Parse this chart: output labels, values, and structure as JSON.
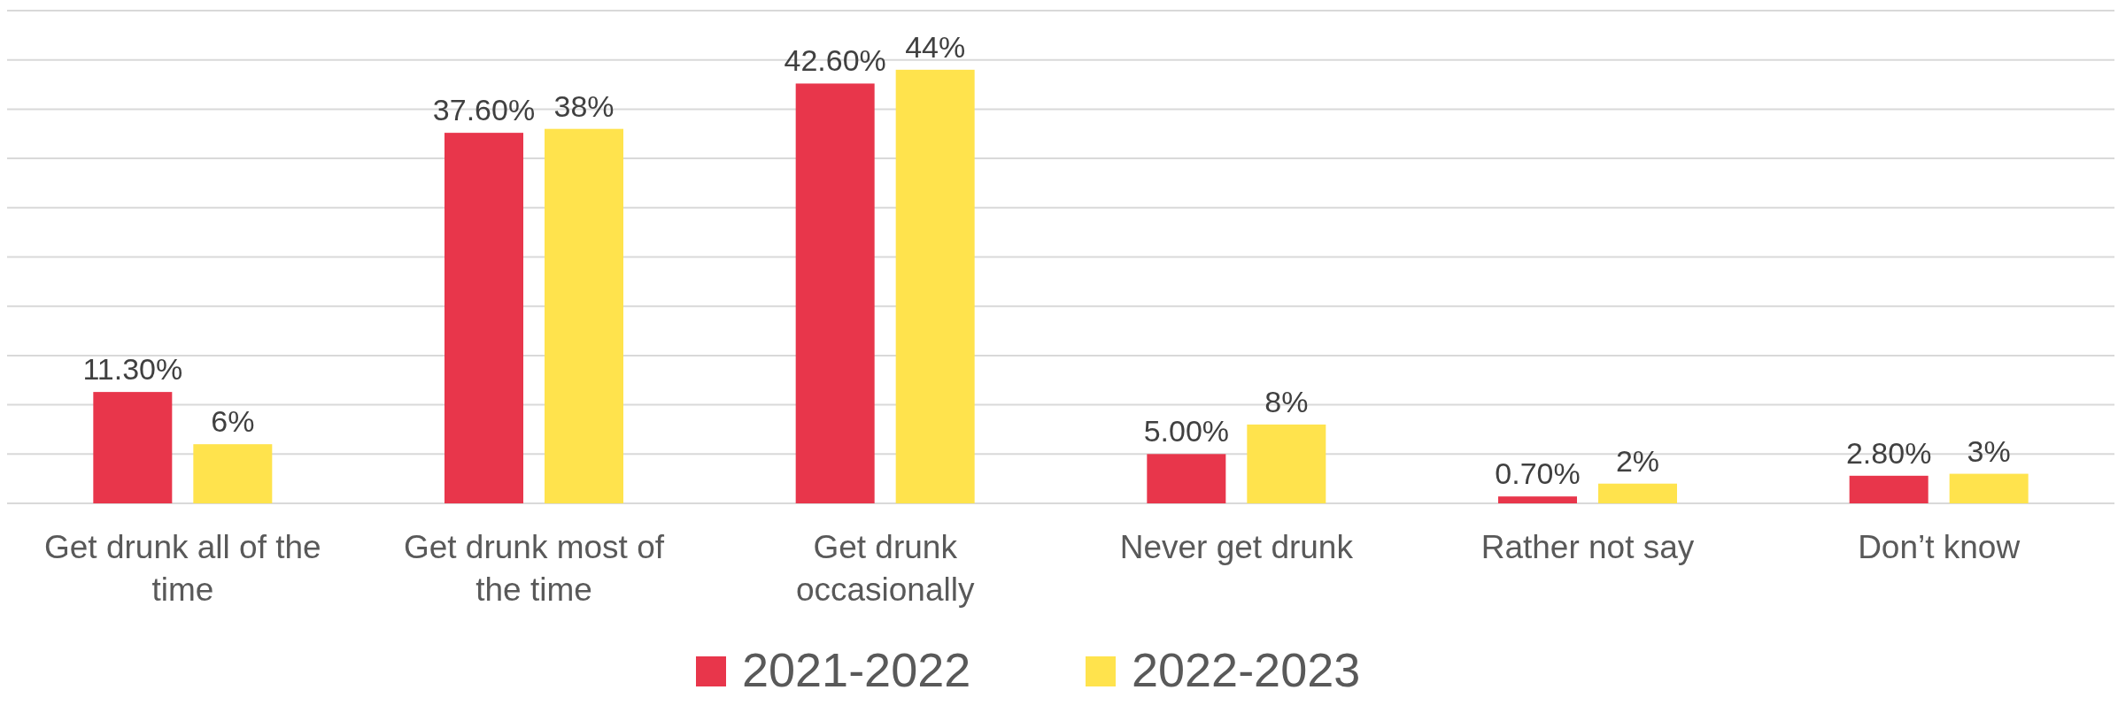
{
  "chart_data": {
    "type": "bar",
    "categories": [
      "Get drunk all of the time",
      "Get drunk most of the time",
      "Get drunk occasionally",
      "Never get drunk",
      "Rather not say",
      "Don’t know"
    ],
    "series": [
      {
        "name": "2021-2022",
        "color": "#e8364b",
        "values": [
          11.3,
          37.6,
          42.6,
          5,
          0.7,
          2.8
        ],
        "value_labels": [
          "11.30%",
          "37.60%",
          "42.60%",
          "5.00%",
          "0.70%",
          "2.80%"
        ]
      },
      {
        "name": "2022-2023",
        "color": "#ffe34d",
        "values": [
          6,
          38,
          44,
          8,
          2,
          3
        ],
        "value_labels": [
          "6%",
          "38%",
          "44%",
          "8%",
          "2%",
          "3%"
        ]
      }
    ],
    "ylim": [
      0,
      50
    ],
    "yticks": [
      {
        "value": 0,
        "label": null
      },
      {
        "value": 5,
        "label": null
      },
      {
        "value": 10,
        "label": null
      },
      {
        "value": 15,
        "label": null
      },
      {
        "value": 20,
        "label": null
      },
      {
        "value": 25,
        "label": null
      },
      {
        "value": 30,
        "label": null
      },
      {
        "value": 35,
        "label": null
      },
      {
        "value": 40,
        "label": null
      },
      {
        "value": 45,
        "label": null
      },
      {
        "value": 50,
        "label": null
      }
    ],
    "tick_labels": "x",
    "grid": true,
    "legend": "bottom"
  }
}
